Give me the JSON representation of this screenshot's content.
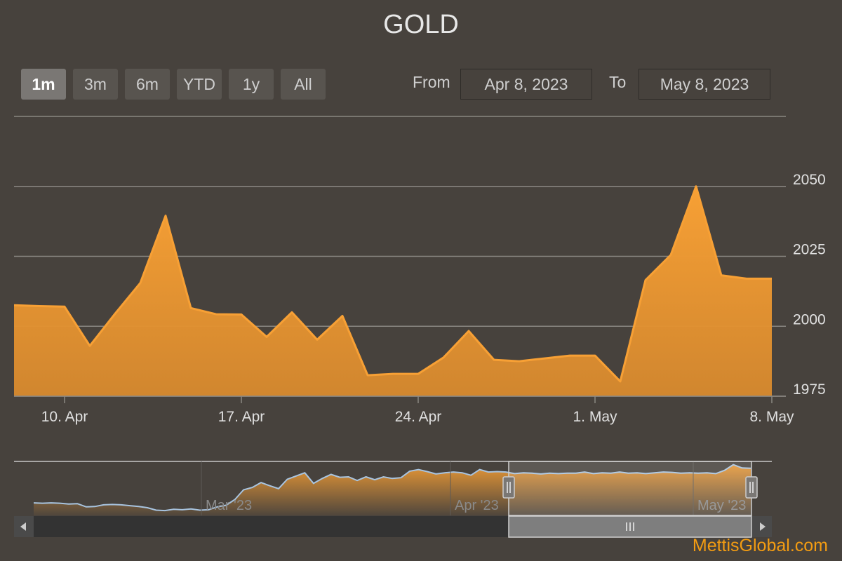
{
  "title": "GOLD",
  "range_selector": {
    "buttons": [
      "1m",
      "3m",
      "6m",
      "YTD",
      "1y",
      "All"
    ],
    "selected": "1m",
    "from_label": "From",
    "from_value": "Apr 8, 2023",
    "to_label": "To",
    "to_value": "May 8, 2023"
  },
  "colors": {
    "series": "#f7a035",
    "area": "#d88a2e",
    "background": "#47423d",
    "grid": "#8a8782",
    "navigator_line": "#a8c4e0",
    "credit": "#f39c12"
  },
  "chart_data": {
    "type": "area",
    "title": "GOLD",
    "xlabel": "",
    "ylabel": "",
    "ylim": [
      1975,
      2075
    ],
    "yticks": [
      1975,
      2000,
      2025,
      2050
    ],
    "xticks": [
      {
        "date": "2023-04-10",
        "label": "10. Apr"
      },
      {
        "date": "2023-04-17",
        "label": "17. Apr"
      },
      {
        "date": "2023-04-24",
        "label": "24. Apr"
      },
      {
        "date": "2023-05-01",
        "label": "1. May"
      },
      {
        "date": "2023-05-08",
        "label": "8. May"
      }
    ],
    "grid": true,
    "series": [
      {
        "points": [
          {
            "x": "2023-04-08",
            "y": 2007.5
          },
          {
            "x": "2023-04-09",
            "y": 2007.2
          },
          {
            "x": "2023-04-10",
            "y": 2007.0
          },
          {
            "x": "2023-04-11",
            "y": 1993.0
          },
          {
            "x": "2023-04-12",
            "y": 2004.5
          },
          {
            "x": "2023-04-13",
            "y": 2015.5
          },
          {
            "x": "2023-04-14",
            "y": 2039.5
          },
          {
            "x": "2023-04-15",
            "y": 2006.5
          },
          {
            "x": "2023-04-16",
            "y": 2004.3
          },
          {
            "x": "2023-04-17",
            "y": 2004.2
          },
          {
            "x": "2023-04-18",
            "y": 1996.2
          },
          {
            "x": "2023-04-19",
            "y": 2005.0
          },
          {
            "x": "2023-04-20",
            "y": 1995.2
          },
          {
            "x": "2023-04-21",
            "y": 2003.7
          },
          {
            "x": "2023-04-22",
            "y": 1982.5
          },
          {
            "x": "2023-04-23",
            "y": 1983.0
          },
          {
            "x": "2023-04-24",
            "y": 1983.0
          },
          {
            "x": "2023-04-25",
            "y": 1988.8
          },
          {
            "x": "2023-04-26",
            "y": 1998.3
          },
          {
            "x": "2023-04-27",
            "y": 1988.0
          },
          {
            "x": "2023-04-28",
            "y": 1987.5
          },
          {
            "x": "2023-04-29",
            "y": 1988.5
          },
          {
            "x": "2023-04-30",
            "y": 1989.5
          },
          {
            "x": "2023-05-01",
            "y": 1989.5
          },
          {
            "x": "2023-05-02",
            "y": 1980.3
          },
          {
            "x": "2023-05-03",
            "y": 2016.5
          },
          {
            "x": "2023-05-04",
            "y": 2025.5
          },
          {
            "x": "2023-05-05",
            "y": 2050.0
          },
          {
            "x": "2023-05-06",
            "y": 2018.2
          },
          {
            "x": "2023-05-07",
            "y": 2017.0
          },
          {
            "x": "2023-05-08",
            "y": 2017.0
          }
        ]
      }
    ]
  },
  "navigator": {
    "labels": [
      "Mar '23",
      "Apr '23",
      "May '23"
    ],
    "series": [
      1930,
      1929,
      1930,
      1929,
      1927,
      1928,
      1920,
      1921,
      1925,
      1926,
      1925,
      1923,
      1921,
      1918,
      1912,
      1911,
      1914,
      1913,
      1915,
      1912,
      1913,
      1920,
      1924,
      1938,
      1962,
      1968,
      1980,
      1972,
      1965,
      1988,
      1996,
      2004,
      1978,
      1990,
      2000,
      1993,
      1994,
      1985,
      1994,
      1987,
      1994,
      1990,
      1992,
      2008,
      2012,
      2007,
      2001,
      2004,
      2006,
      2004,
      1998,
      2012,
      2006,
      2007,
      2006,
      2002,
      2004,
      2003,
      2001,
      2003,
      2002,
      2003,
      2003,
      2006,
      2002,
      2004,
      2003,
      2006,
      2003,
      2004,
      2002,
      2004,
      2006,
      2005,
      2003,
      2004,
      2003,
      2004,
      2002,
      2010,
      2024,
      2016,
      2015
    ],
    "window": {
      "from": "Apr 8, 2023",
      "to": "May 8, 2023"
    }
  },
  "credit": "MettisGlobal.com"
}
